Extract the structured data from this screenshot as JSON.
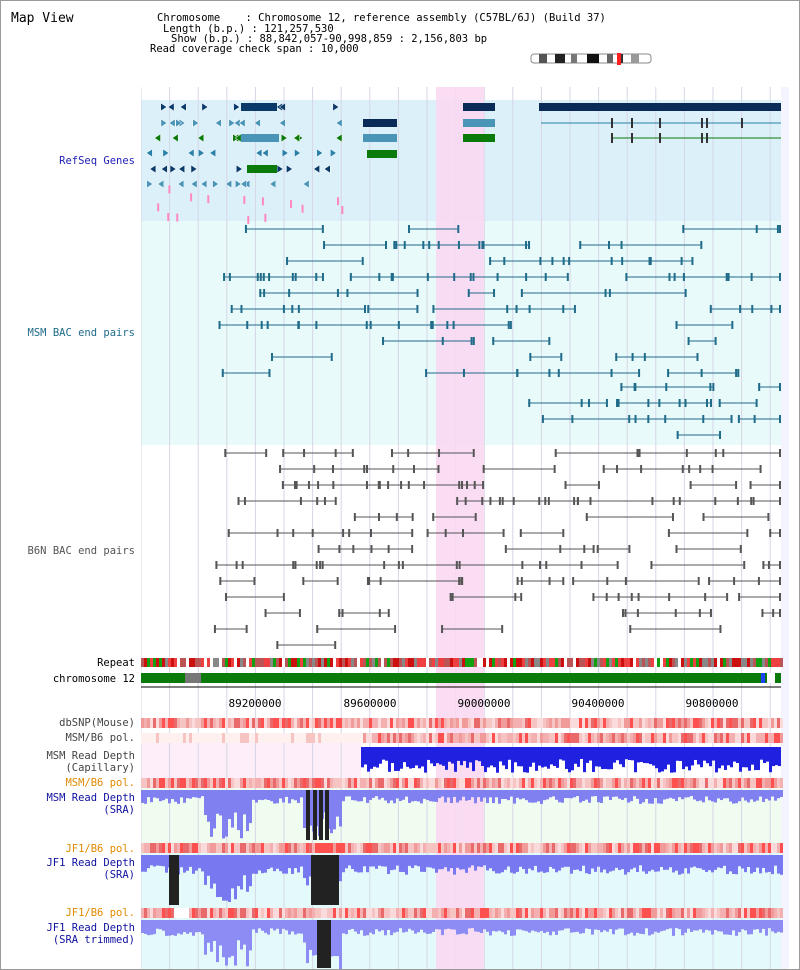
{
  "header": {
    "title": "Map View",
    "chromosome_label": "Chromosome",
    "chromosome_value": "Chromosome 12, reference assembly (C57BL/6J) (Build 37)",
    "length_label": "Length (b.p.)",
    "length_value": "121,257,530",
    "show_label": "Show (b.p.)",
    "show_value": "88,842,057-90,998,859 : 2,156,803 bp",
    "coverage_label": "Read coverage check span",
    "coverage_value": "10,000"
  },
  "tracks": {
    "refseq": "RefSeq Genes",
    "msm_bac": "MSM BAC end pairs",
    "b6n_bac": "B6N BAC end pairs",
    "repeat": "Repeat",
    "chromosome": "chromosome 12",
    "dbsnp": "dbSNP(Mouse)",
    "msm_b6_pol_1": "MSM/B6 pol.",
    "msm_depth_cap_1": "MSM Read Depth",
    "msm_depth_cap_2": "(Capillary)",
    "msm_b6_pol_2": "MSM/B6 pol.",
    "msm_depth_sra_1": "MSM Read Depth",
    "msm_depth_sra_2": "(SRA)",
    "jf1_b6_pol_1": "JF1/B6 pol.",
    "jf1_depth_sra_1": "JF1 Read Depth",
    "jf1_depth_sra_2": "(SRA)",
    "jf1_b6_pol_2": "JF1/B6 pol.",
    "jf1_depth_trim_1": "JF1 Read Depth",
    "jf1_depth_trim_2": "(SRA trimmed)"
  },
  "axis": {
    "ticks": [
      "89200000",
      "89600000",
      "90000000",
      "90400000",
      "90800000"
    ]
  },
  "colors": {
    "refseq_label": "#1f1fb4",
    "msm_label": "#1f6b8a",
    "b6n_label": "#555555",
    "orange_label": "#e08a00",
    "blue_label": "#1010a0",
    "highlight": "#f9d8f2"
  }
}
